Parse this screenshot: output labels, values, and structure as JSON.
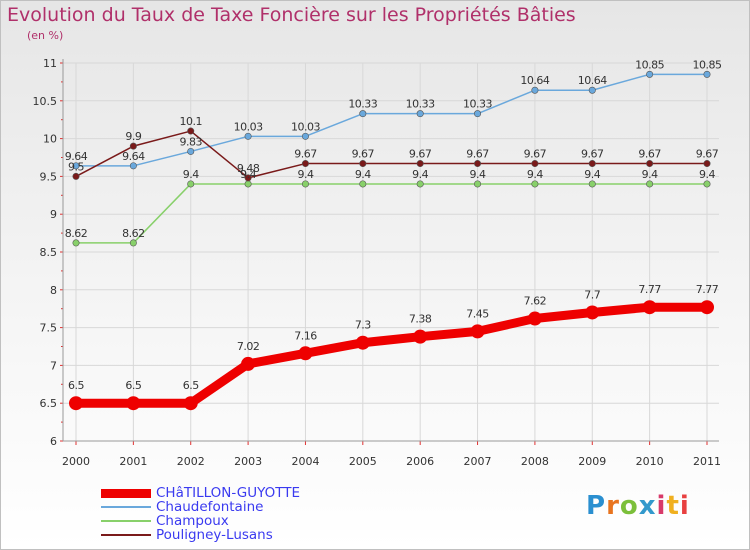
{
  "title": "Evolution du Taux de Taxe Foncière sur les Propriétés Bâties",
  "unit_label": "(en %)",
  "logo": {
    "text": "Proxiti",
    "letter_colors": [
      "#2a8fd0",
      "#e8741f",
      "#7bbf3a",
      "#3399cc",
      "#d83a6a",
      "#f0b020",
      "#e84040"
    ]
  },
  "chart_data": {
    "type": "line",
    "title": "Evolution du Taux de Taxe Foncière sur les Propriétés Bâties",
    "ylabel": "(en %)",
    "xlabel": "",
    "x": [
      "2000",
      "2001",
      "2002",
      "2003",
      "2004",
      "2005",
      "2006",
      "2007",
      "2008",
      "2009",
      "2010",
      "2011"
    ],
    "ylim": [
      6,
      11
    ],
    "yticks": [
      "6",
      "6.5",
      "7",
      "7.5",
      "8",
      "8.5",
      "9",
      "9.5",
      "10",
      "10.5",
      "11"
    ],
    "grid": true,
    "legend_position": "bottom-left",
    "series": [
      {
        "name": "CHâTILLON-GUYOTTE",
        "color": "#ee0000",
        "values": [
          6.5,
          6.5,
          6.5,
          7.02,
          7.16,
          7.3,
          7.38,
          7.45,
          7.62,
          7.7,
          7.77,
          7.77
        ],
        "labels": [
          "6.5",
          "6.5",
          "6.5",
          "7.02",
          "7.16",
          "7.3",
          "7.38",
          "7.45",
          "7.62",
          "7.7",
          "7.77",
          "7.77"
        ]
      },
      {
        "name": "Chaudefontaine",
        "color": "#6aa8dc",
        "values": [
          9.64,
          9.64,
          9.83,
          10.03,
          10.03,
          10.33,
          10.33,
          10.33,
          10.64,
          10.64,
          10.85,
          10.85
        ],
        "labels": [
          "9.64",
          "9.64",
          "9.83",
          "10.03",
          "10.03",
          "10.33",
          "10.33",
          "10.33",
          "10.64",
          "10.64",
          "10.85",
          "10.85"
        ]
      },
      {
        "name": "Champoux",
        "color": "#88d06a",
        "values": [
          8.62,
          8.62,
          9.4,
          9.4,
          9.4,
          9.4,
          9.4,
          9.4,
          9.4,
          9.4,
          9.4,
          9.4
        ],
        "labels": [
          "8.62",
          "8.62",
          "9.4",
          "9.4",
          "9.4",
          "9.4",
          "9.4",
          "9.4",
          "9.4",
          "9.4",
          "9.4",
          "9.4"
        ]
      },
      {
        "name": "Pouligney-Lusans",
        "color": "#7a1a1a",
        "values": [
          9.5,
          9.9,
          10.1,
          9.48,
          9.67,
          9.67,
          9.67,
          9.67,
          9.67,
          9.67,
          9.67,
          9.67
        ],
        "labels": [
          "9.5",
          "9.9",
          "10.1",
          "9.48",
          "9.67",
          "9.67",
          "9.67",
          "9.67",
          "9.67",
          "9.67",
          "9.67",
          "9.67"
        ]
      }
    ]
  }
}
